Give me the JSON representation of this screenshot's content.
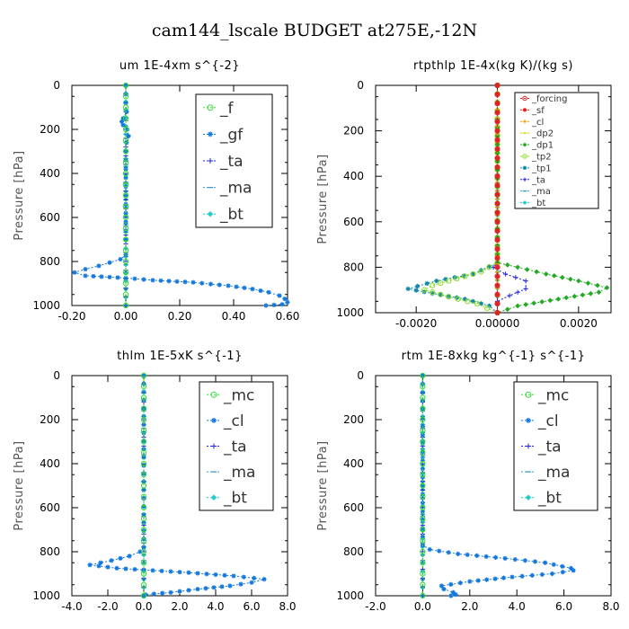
{
  "figure_title": "cam144_lscale  BUDGET at275E,-12N",
  "chart_data": [
    {
      "id": "um",
      "type": "line",
      "title": "um  1E-4xm s^{-2}",
      "ylabel": "Pressure [hPa]",
      "xlim": [
        -0.2,
        0.6
      ],
      "ylim": [
        1000,
        0
      ],
      "xticks": [
        "-0.20",
        "0.00",
        "0.20",
        "0.40",
        "0.60"
      ],
      "xtick_values": [
        -0.2,
        0.0,
        0.2,
        0.4,
        0.6
      ],
      "yticks": [
        "0",
        "200",
        "400",
        "600",
        "800",
        "1000"
      ],
      "ytick_values": [
        0,
        200,
        400,
        600,
        800,
        1000
      ],
      "legend_font": 17,
      "series": [
        {
          "name": "_f",
          "color": "#33dd33",
          "marker": "circle",
          "points": [
            [
              0,
              0
            ],
            [
              0,
              100
            ],
            [
              0,
              200
            ],
            [
              0,
              300
            ],
            [
              0,
              400
            ],
            [
              0,
              500
            ],
            [
              0,
              600
            ],
            [
              0,
              700
            ],
            [
              0,
              800
            ],
            [
              0,
              900
            ],
            [
              0,
              1000
            ]
          ]
        },
        {
          "name": "_gf",
          "color": "#1177dd",
          "marker": "star",
          "points": [
            [
              0,
              0
            ],
            [
              0,
              80
            ],
            [
              0.003,
              120
            ],
            [
              -0.01,
              150
            ],
            [
              -0.015,
              165
            ],
            [
              -0.01,
              180
            ],
            [
              0.005,
              200
            ],
            [
              0.01,
              230
            ],
            [
              0.003,
              260
            ],
            [
              0,
              300
            ],
            [
              0,
              500
            ],
            [
              0,
              700
            ],
            [
              0,
              770
            ],
            [
              -0.02,
              790
            ],
            [
              -0.06,
              805
            ],
            [
              -0.1,
              820
            ],
            [
              -0.15,
              835
            ],
            [
              -0.19,
              850
            ],
            [
              -0.15,
              865
            ],
            [
              0.0,
              875
            ],
            [
              0.1,
              885
            ],
            [
              0.25,
              895
            ],
            [
              0.38,
              910
            ],
            [
              0.47,
              925
            ],
            [
              0.53,
              940
            ],
            [
              0.57,
              955
            ],
            [
              0.59,
              970
            ],
            [
              0.6,
              985
            ],
            [
              0.58,
              995
            ],
            [
              0.52,
              1000
            ]
          ]
        },
        {
          "name": "_ta",
          "color": "#2222dd",
          "marker": "plus",
          "points": [
            [
              0,
              0
            ],
            [
              0,
              200
            ],
            [
              0,
              400
            ],
            [
              0,
              600
            ],
            [
              0,
              800
            ],
            [
              0,
              1000
            ]
          ]
        },
        {
          "name": "_ma",
          "color": "#3399cc",
          "marker": "dash",
          "points": [
            [
              0,
              0
            ],
            [
              0,
              1000
            ]
          ]
        },
        {
          "name": "_bt",
          "color": "#22cccc",
          "marker": "diamond",
          "points": [
            [
              0,
              0
            ],
            [
              0,
              1000
            ]
          ]
        }
      ]
    },
    {
      "id": "rtpthlp",
      "type": "line",
      "title": "rtpthlp  1E-4x(kg K)/(kg s)",
      "ylabel": "Pressure [hPa]",
      "xlim": [
        -0.003,
        0.0028
      ],
      "ylim": [
        1000,
        0
      ],
      "xticks": [
        "-0.0020",
        "0.00000",
        "0.0020"
      ],
      "xtick_values": [
        -0.002,
        0.0,
        0.002
      ],
      "yticks": [
        "0",
        "200",
        "400",
        "600",
        "800",
        "1000"
      ],
      "ytick_values": [
        0,
        200,
        400,
        600,
        800,
        1000
      ],
      "legend_font": 10,
      "series": [
        {
          "name": "_forcing",
          "color": "#dd2222",
          "marker": "circle",
          "points": [
            [
              0,
              0
            ],
            [
              0,
              200
            ],
            [
              0,
              400
            ],
            [
              0,
              600
            ],
            [
              0,
              800
            ],
            [
              0,
              1000
            ]
          ]
        },
        {
          "name": "_sf",
          "color": "#dd2222",
          "marker": "star",
          "points": [
            [
              0,
              0
            ],
            [
              0,
              200
            ],
            [
              0,
              400
            ],
            [
              0,
              600
            ],
            [
              0,
              800
            ],
            [
              0,
              1000
            ]
          ]
        },
        {
          "name": "_cl",
          "color": "#ee9900",
          "marker": "plus",
          "points": [
            [
              0,
              0
            ],
            [
              0,
              500
            ],
            [
              0,
              1000
            ]
          ]
        },
        {
          "name": "_dp2",
          "color": "#cccc00",
          "marker": "dash",
          "points": [
            [
              0,
              0
            ],
            [
              0,
              500
            ],
            [
              0,
              1000
            ]
          ]
        },
        {
          "name": "_dp1",
          "color": "#22aa22",
          "marker": "diamond",
          "points": [
            [
              0,
              0
            ],
            [
              0,
              780
            ],
            [
              0.0005,
              800
            ],
            [
              0.0012,
              830
            ],
            [
              0.002,
              860
            ],
            [
              0.0027,
              890
            ],
            [
              0.0025,
              910
            ],
            [
              0.0015,
              940
            ],
            [
              0.0005,
              970
            ],
            [
              0,
              1000
            ]
          ]
        },
        {
          "name": "_tp2",
          "color": "#88dd22",
          "marker": "circle",
          "points": [
            [
              0,
              0
            ],
            [
              0,
              780
            ],
            [
              -0.0004,
              820
            ],
            [
              -0.001,
              850
            ],
            [
              -0.0016,
              880
            ],
            [
              -0.0018,
              900
            ],
            [
              -0.0012,
              930
            ],
            [
              -0.0005,
              960
            ],
            [
              0,
              1000
            ]
          ]
        },
        {
          "name": "_tp1",
          "color": "#1188aa",
          "marker": "star",
          "points": [
            [
              0,
              0
            ],
            [
              0,
              780
            ],
            [
              -0.0006,
              830
            ],
            [
              -0.0015,
              860
            ],
            [
              -0.0022,
              895
            ],
            [
              -0.0016,
              915
            ],
            [
              -0.0008,
              940
            ],
            [
              -0.0002,
              970
            ],
            [
              0,
              1000
            ]
          ]
        },
        {
          "name": "_ta",
          "color": "#2222dd",
          "marker": "plus",
          "points": [
            [
              0,
              0
            ],
            [
              0,
              780
            ],
            [
              -0.0001,
              800
            ],
            [
              0.0002,
              830
            ],
            [
              0.0007,
              860
            ],
            [
              0.0007,
              895
            ],
            [
              0.0003,
              925
            ],
            [
              0,
              950
            ],
            [
              0,
              1000
            ]
          ]
        },
        {
          "name": "_ma",
          "color": "#3399cc",
          "marker": "dash",
          "points": [
            [
              0,
              0
            ],
            [
              0,
              1000
            ]
          ]
        },
        {
          "name": "_bt",
          "color": "#22cccc",
          "marker": "diamond",
          "points": [
            [
              0,
              0
            ],
            [
              0,
              1000
            ]
          ]
        }
      ]
    },
    {
      "id": "thlm",
      "type": "line",
      "title": "thlm  1E-5xK s^{-1}",
      "ylabel": "Pressure [hPa]",
      "xlim": [
        -4.0,
        8.0
      ],
      "ylim": [
        1000,
        0
      ],
      "xticks": [
        "-4.0",
        "-2.0",
        "0.0",
        "2.0",
        "4.0",
        "6.0",
        "8.0"
      ],
      "xtick_values": [
        -4,
        -2,
        0,
        2,
        4,
        6,
        8
      ],
      "yticks": [
        "0",
        "200",
        "400",
        "600",
        "800",
        "1000"
      ],
      "ytick_values": [
        0,
        200,
        400,
        600,
        800,
        1000
      ],
      "legend_font": 17,
      "series": [
        {
          "name": "_mc",
          "color": "#33dd33",
          "marker": "circle",
          "points": [
            [
              0,
              0
            ],
            [
              0,
              100
            ],
            [
              0,
              200
            ],
            [
              0,
              300
            ],
            [
              0,
              400
            ],
            [
              0,
              500
            ],
            [
              0,
              600
            ],
            [
              0,
              700
            ],
            [
              0,
              800
            ],
            [
              0,
              900
            ],
            [
              0,
              1000
            ]
          ]
        },
        {
          "name": "_cl",
          "color": "#1177dd",
          "marker": "star",
          "points": [
            [
              0,
              0
            ],
            [
              0,
              780
            ],
            [
              -0.2,
              800
            ],
            [
              -0.8,
              820
            ],
            [
              -1.8,
              840
            ],
            [
              -3.0,
              860
            ],
            [
              -1.5,
              875
            ],
            [
              2.5,
              895
            ],
            [
              5.0,
              910
            ],
            [
              6.7,
              925
            ],
            [
              6.0,
              940
            ],
            [
              4.8,
              955
            ],
            [
              3.0,
              970
            ],
            [
              1.5,
              985
            ],
            [
              0.1,
              995
            ],
            [
              0,
              1000
            ]
          ]
        },
        {
          "name": "_ta",
          "color": "#2222dd",
          "marker": "plus",
          "points": [
            [
              0,
              0
            ],
            [
              0,
              400
            ],
            [
              0,
              800
            ],
            [
              0,
              1000
            ]
          ]
        },
        {
          "name": "_ma",
          "color": "#3399cc",
          "marker": "dash",
          "points": [
            [
              0,
              0
            ],
            [
              0,
              1000
            ]
          ]
        },
        {
          "name": "_bt",
          "color": "#22cccc",
          "marker": "diamond",
          "points": [
            [
              0,
              0
            ],
            [
              0,
              1000
            ]
          ]
        }
      ]
    },
    {
      "id": "rtm",
      "type": "line",
      "title": "rtm  1E-8xkg kg^{-1} s^{-1}",
      "ylabel": "Pressure [hPa]",
      "xlim": [
        -2.0,
        8.0
      ],
      "ylim": [
        1000,
        0
      ],
      "xticks": [
        "-2.0",
        "0.0",
        "2.0",
        "4.0",
        "6.0",
        "8.0"
      ],
      "xtick_values": [
        -2,
        0,
        2,
        4,
        6,
        8
      ],
      "yticks": [
        "0",
        "200",
        "400",
        "600",
        "800",
        "1000"
      ],
      "ytick_values": [
        0,
        200,
        400,
        600,
        800,
        1000
      ],
      "legend_font": 17,
      "series": [
        {
          "name": "_mc",
          "color": "#33dd33",
          "marker": "circle",
          "points": [
            [
              0,
              0
            ],
            [
              0,
              100
            ],
            [
              0,
              200
            ],
            [
              0,
              300
            ],
            [
              0,
              400
            ],
            [
              0,
              500
            ],
            [
              0,
              600
            ],
            [
              0,
              700
            ],
            [
              0,
              800
            ],
            [
              0,
              900
            ],
            [
              0,
              1000
            ]
          ]
        },
        {
          "name": "_cl",
          "color": "#1177dd",
          "marker": "star",
          "points": [
            [
              0,
              0
            ],
            [
              0,
              770
            ],
            [
              0.3,
              790
            ],
            [
              1.5,
              810
            ],
            [
              3.5,
              830
            ],
            [
              5.2,
              850
            ],
            [
              6.3,
              875
            ],
            [
              6.4,
              885
            ],
            [
              5.5,
              900
            ],
            [
              3.8,
              915
            ],
            [
              2.0,
              935
            ],
            [
              0.8,
              955
            ],
            [
              0.9,
              970
            ],
            [
              1.3,
              985
            ],
            [
              1.4,
              995
            ],
            [
              1.2,
              1000
            ]
          ]
        },
        {
          "name": "_ta",
          "color": "#2222dd",
          "marker": "plus",
          "points": [
            [
              0,
              0
            ],
            [
              0,
              400
            ],
            [
              0,
              800
            ],
            [
              0,
              1000
            ]
          ]
        },
        {
          "name": "_ma",
          "color": "#3399cc",
          "marker": "dash",
          "points": [
            [
              0,
              0
            ],
            [
              0,
              1000
            ]
          ]
        },
        {
          "name": "_bt",
          "color": "#22cccc",
          "marker": "diamond",
          "points": [
            [
              0,
              0
            ],
            [
              0,
              1000
            ]
          ]
        }
      ]
    }
  ]
}
